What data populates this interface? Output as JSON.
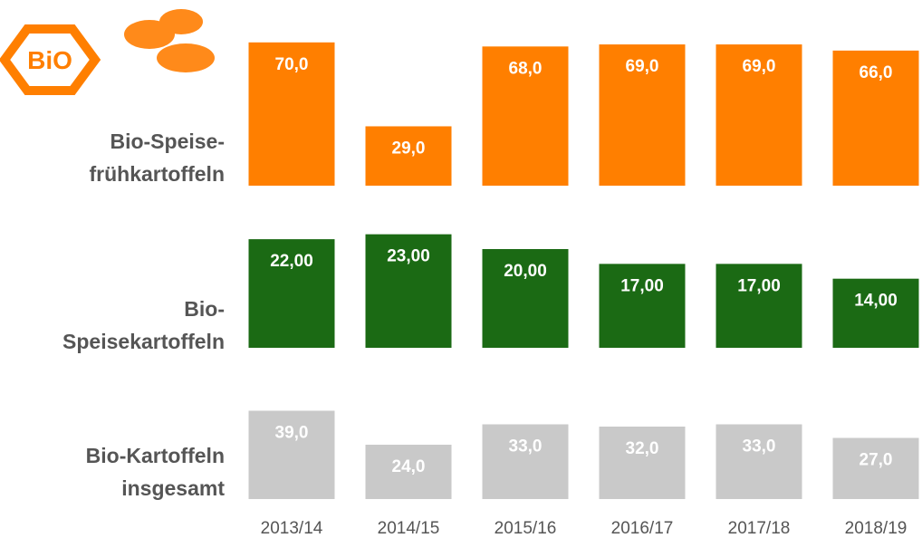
{
  "logo": {
    "text": "BiO"
  },
  "chart_data": {
    "type": "bar",
    "categories": [
      "2013/14",
      "2014/15",
      "2015/16",
      "2016/17",
      "2017/18",
      "2018/19"
    ],
    "series": [
      {
        "name": "Bio-Speise-\nfrühkartoffeln",
        "color": "#ff7f00",
        "values": [
          70,
          29,
          68,
          69,
          69,
          66
        ],
        "value_labels": [
          "70,0",
          "29,0",
          "68,0",
          "69,0",
          "69,0",
          "66,0"
        ]
      },
      {
        "name": "Bio-\nSpeisekartoffeln",
        "color": "#1b6a14",
        "values": [
          22,
          23,
          20,
          17,
          17,
          14
        ],
        "value_labels": [
          "22,00",
          "23,00",
          "20,00",
          "17,00",
          "17,00",
          "14,00"
        ]
      },
      {
        "name": "Bio-Kartoffeln\ninsgesamt",
        "color": "#c9c9c9",
        "values": [
          39,
          24,
          33,
          32,
          33,
          27
        ],
        "value_labels": [
          "39,0",
          "24,0",
          "33,0",
          "32,0",
          "33,0",
          "27,0"
        ]
      }
    ]
  }
}
